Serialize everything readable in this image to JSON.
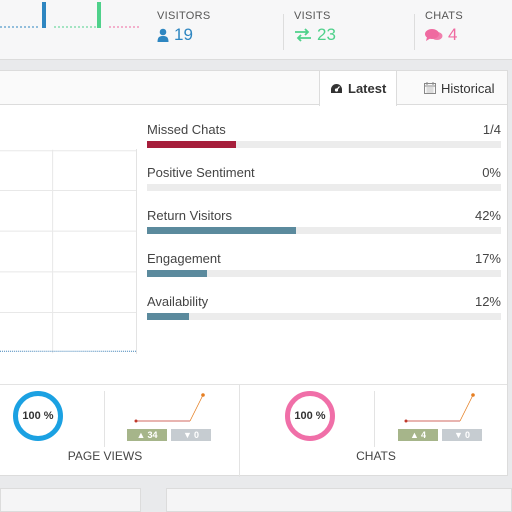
{
  "stats": [
    {
      "label": "VISITORS",
      "value": "19",
      "icon": "user-icon",
      "color": "#2e86c1"
    },
    {
      "label": "VISITS",
      "value": "23",
      "icon": "exchange-icon",
      "color": "#4fd18b"
    },
    {
      "label": "CHATS",
      "value": "4",
      "icon": "comments-icon",
      "color": "#ef6aa0"
    }
  ],
  "tabs": {
    "latest": "Latest",
    "historical": "Historical"
  },
  "metrics": [
    {
      "label": "Missed Chats",
      "value": "1/4",
      "fraction": 0.25,
      "color": "#a61e3b"
    },
    {
      "label": "Positive Sentiment",
      "value": "0%",
      "fraction": 0.0,
      "color": "#5b8a9d"
    },
    {
      "label": "Return Visitors",
      "value": "42%",
      "fraction": 0.42,
      "color": "#5b8a9d"
    },
    {
      "label": "Engagement",
      "value": "17%",
      "fraction": 0.17,
      "color": "#5b8a9d"
    },
    {
      "label": "Availability",
      "value": "12%",
      "fraction": 0.12,
      "color": "#5b8a9d"
    }
  ],
  "bottom": {
    "page_views": {
      "percent": "100 %",
      "caption": "PAGE VIEWS",
      "up": "34",
      "down": "0",
      "color": "#1ba1e2"
    },
    "chats": {
      "percent": "100 %",
      "caption": "CHATS",
      "up": "4",
      "down": "0",
      "color": "#f06fa8"
    }
  }
}
